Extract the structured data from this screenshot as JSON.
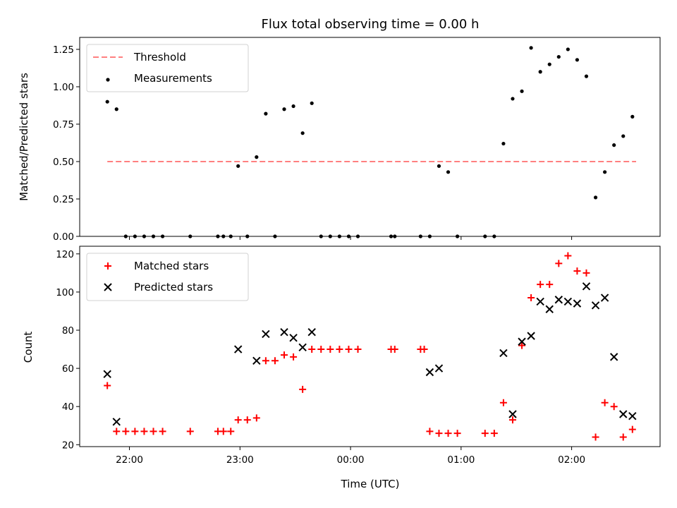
{
  "title": "Flux total observing time = 0.00 h",
  "x_axis_label": "Time (UTC)",
  "chart_data": [
    {
      "type": "scatter",
      "panel": "top",
      "ylabel": "Matched/Predicted stars",
      "ylim": [
        0,
        1.33
      ],
      "yticks": [
        0.0,
        0.25,
        0.5,
        0.75,
        1.0,
        1.25
      ],
      "ytick_labels": [
        "0.00",
        "0.25",
        "0.50",
        "0.75",
        "1.00",
        "1.25"
      ],
      "xlim": [
        "21:33",
        "02:48"
      ],
      "xticks": [
        "22:00",
        "23:00",
        "00:00",
        "01:00",
        "02:00"
      ],
      "legend": "top-left",
      "series": [
        {
          "name": "Threshold",
          "style": "dashed-line",
          "color": "#ff8080",
          "x": [
            "21:48",
            "02:35"
          ],
          "y": [
            0.5,
            0.5
          ]
        },
        {
          "name": "Measurements",
          "style": "dot",
          "color": "#000000",
          "x": [
            "21:48",
            "21:53",
            "21:58",
            "22:03",
            "22:08",
            "22:13",
            "22:18",
            "22:33",
            "22:48",
            "22:51",
            "22:55",
            "22:59",
            "23:04",
            "23:09",
            "23:14",
            "23:19",
            "23:24",
            "23:29",
            "23:34",
            "23:39",
            "23:44",
            "23:49",
            "23:54",
            "23:59",
            "00:04",
            "00:22",
            "00:24",
            "00:38",
            "00:43",
            "00:48",
            "00:53",
            "00:58",
            "01:13",
            "01:18",
            "01:23",
            "01:28",
            "01:33",
            "01:38",
            "01:43",
            "01:48",
            "01:53",
            "01:58",
            "02:03",
            "02:08",
            "02:13",
            "02:18",
            "02:23",
            "02:28",
            "02:33"
          ],
          "y": [
            0.9,
            0.85,
            0.0,
            0.0,
            0.0,
            0.0,
            0.0,
            0.0,
            0.0,
            0.0,
            0.0,
            0.47,
            0.0,
            0.53,
            0.82,
            0.0,
            0.85,
            0.87,
            0.69,
            0.89,
            0.0,
            0.0,
            0.0,
            0.0,
            0.0,
            0.0,
            0.0,
            0.0,
            0.0,
            0.47,
            0.43,
            0.0,
            0.0,
            0.0,
            0.62,
            0.92,
            0.97,
            1.26,
            1.1,
            1.15,
            1.2,
            1.25,
            1.18,
            1.07,
            0.26,
            0.43,
            0.61,
            0.67,
            0.8
          ]
        }
      ]
    },
    {
      "type": "scatter",
      "panel": "bottom",
      "ylabel": "Count",
      "xlabel": "Time (UTC)",
      "ylim": [
        19,
        124
      ],
      "yticks": [
        20,
        40,
        60,
        80,
        100,
        120
      ],
      "ytick_labels": [
        "20",
        "40",
        "60",
        "80",
        "100",
        "120"
      ],
      "xlim": [
        "21:33",
        "02:48"
      ],
      "xticks": [
        "22:00",
        "23:00",
        "00:00",
        "01:00",
        "02:00"
      ],
      "xtick_labels": [
        "22:00",
        "23:00",
        "00:00",
        "01:00",
        "02:00"
      ],
      "legend": "top-left",
      "series": [
        {
          "name": "Matched stars",
          "marker": "plus",
          "color": "#ff0000",
          "x": [
            "21:48",
            "21:53",
            "21:58",
            "22:03",
            "22:08",
            "22:13",
            "22:18",
            "22:33",
            "22:48",
            "22:51",
            "22:55",
            "22:59",
            "23:04",
            "23:09",
            "23:14",
            "23:19",
            "23:24",
            "23:29",
            "23:34",
            "23:39",
            "23:44",
            "23:49",
            "23:54",
            "23:59",
            "00:04",
            "00:22",
            "00:24",
            "00:38",
            "00:40",
            "00:43",
            "00:48",
            "00:53",
            "00:58",
            "01:13",
            "01:18",
            "01:23",
            "01:28",
            "01:33",
            "01:38",
            "01:43",
            "01:48",
            "01:53",
            "01:58",
            "02:03",
            "02:08",
            "02:13",
            "02:18",
            "02:23",
            "02:28",
            "02:33"
          ],
          "y": [
            51,
            27,
            27,
            27,
            27,
            27,
            27,
            27,
            27,
            27,
            27,
            33,
            33,
            34,
            64,
            64,
            67,
            66,
            49,
            70,
            70,
            70,
            70,
            70,
            70,
            70,
            70,
            70,
            70,
            27,
            26,
            26,
            26,
            26,
            26,
            42,
            33,
            72,
            97,
            104,
            104,
            115,
            119,
            111,
            110,
            24,
            42,
            40,
            24,
            28
          ]
        },
        {
          "name": "Predicted stars",
          "marker": "x",
          "color": "#000000",
          "x": [
            "21:48",
            "21:53",
            "22:59",
            "23:09",
            "23:14",
            "23:24",
            "23:29",
            "23:34",
            "23:39",
            "00:43",
            "00:48",
            "01:23",
            "01:28",
            "01:33",
            "01:38",
            "01:43",
            "01:48",
            "01:53",
            "01:58",
            "02:03",
            "02:08",
            "02:13",
            "02:18",
            "02:23",
            "02:28",
            "02:33"
          ],
          "y": [
            57,
            32,
            70,
            64,
            78,
            79,
            76,
            71,
            79,
            58,
            60,
            68,
            36,
            74,
            77,
            95,
            91,
            96,
            95,
            94,
            103,
            93,
            97,
            66,
            36,
            35
          ]
        }
      ]
    }
  ]
}
